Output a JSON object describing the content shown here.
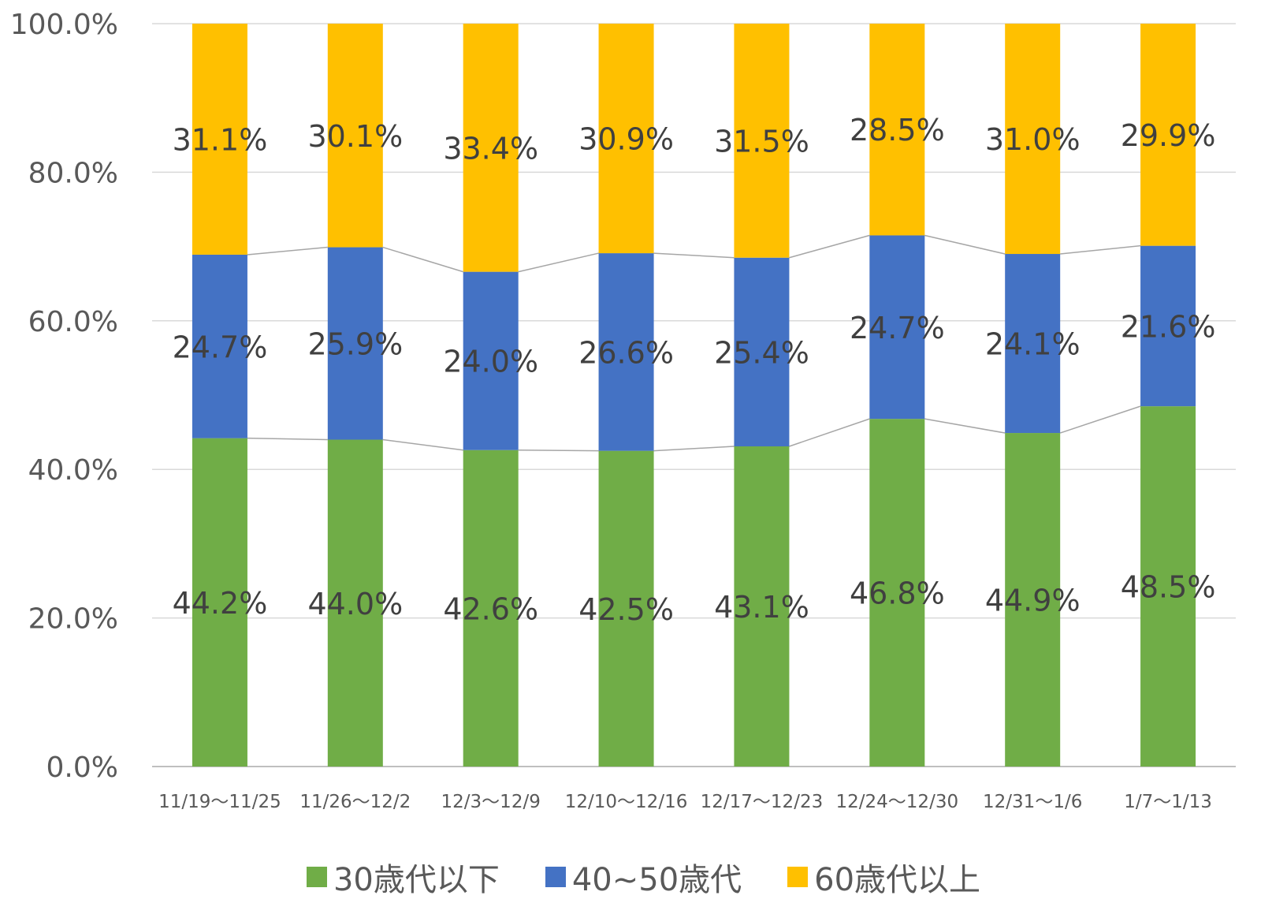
{
  "chart_data": {
    "type": "bar",
    "stacked": true,
    "categories": [
      "11/19～11/25",
      "11/26～12/2",
      "12/3～12/9",
      "12/10～12/16",
      "12/17～12/23",
      "12/24～12/30",
      "12/31～1/6",
      "1/7～1/13"
    ],
    "series": [
      {
        "name": "30歳代以下",
        "color": "#70AD47",
        "values": [
          44.2,
          44.0,
          42.6,
          42.5,
          43.1,
          46.8,
          44.9,
          48.5
        ],
        "labels": [
          "44.2%",
          "44.0%",
          "42.6%",
          "42.5%",
          "43.1%",
          "46.8%",
          "44.9%",
          "48.5%"
        ]
      },
      {
        "name": "40~50歳代",
        "color": "#4472C4",
        "values": [
          24.7,
          25.9,
          24.0,
          26.6,
          25.4,
          24.7,
          24.1,
          21.6
        ],
        "labels": [
          "24.7%",
          "25.9%",
          "24.0%",
          "26.6%",
          "25.4%",
          "24.7%",
          "24.1%",
          "21.6%"
        ]
      },
      {
        "name": "60歳代以上",
        "color": "#FFC000",
        "values": [
          31.1,
          30.1,
          33.4,
          30.9,
          31.5,
          28.5,
          31.0,
          29.9
        ],
        "labels": [
          "31.1%",
          "30.1%",
          "33.4%",
          "30.9%",
          "31.5%",
          "28.5%",
          "31.0%",
          "29.9%"
        ]
      }
    ],
    "ylim": [
      0,
      100
    ],
    "yticks": [
      0,
      20,
      40,
      60,
      80,
      100
    ],
    "ytick_labels": [
      "0.0%",
      "20.0%",
      "40.0%",
      "60.0%",
      "80.0%",
      "100.0%"
    ],
    "series_lines": true,
    "grid": true,
    "legend_position": "bottom"
  }
}
